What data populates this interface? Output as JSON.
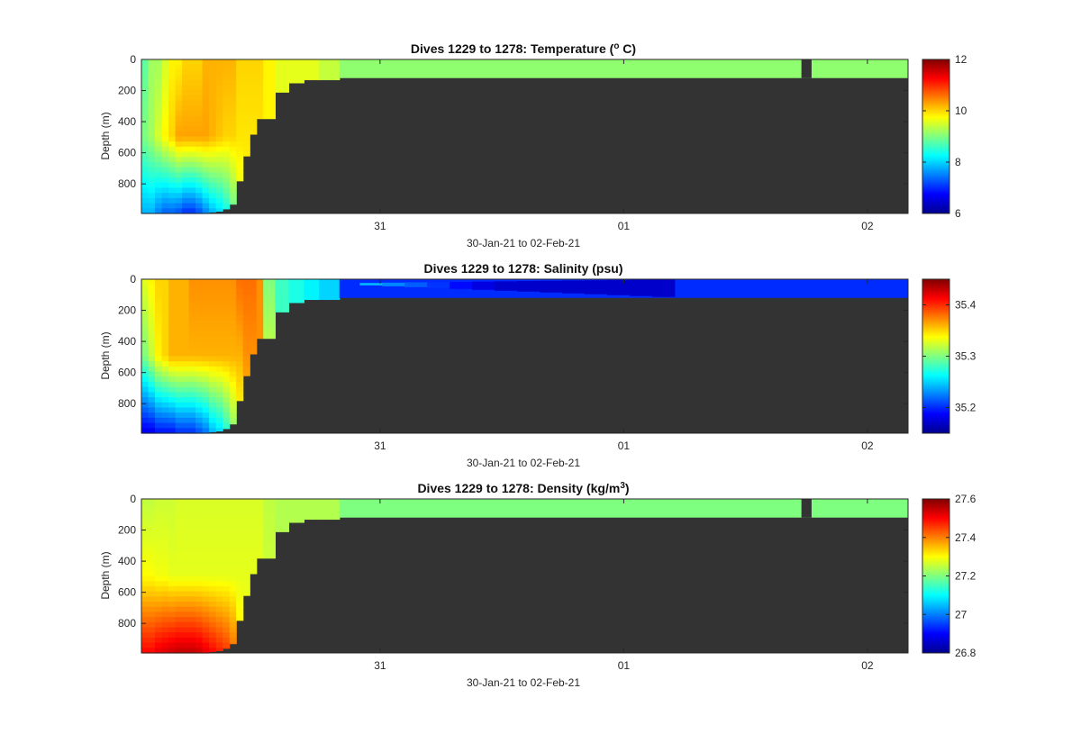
{
  "chart_data": [
    {
      "type": "heatmap",
      "variable": "temperature",
      "title_main": "Dives 1229 to 1278: Temperature (",
      "title_sup": "o",
      "title_end": " C)",
      "xlabel": "30-Jan-21 to 02-Feb-21",
      "ylabel": "Depth (m)",
      "xlim": [
        "2021-01-30T00:30",
        "2021-02-02T04:00"
      ],
      "ylim": [
        990,
        0
      ],
      "x_ticks": [
        {
          "date": "2021-01-31",
          "label": "31"
        },
        {
          "date": "2021-02-01",
          "label": "01"
        },
        {
          "date": "2021-02-02",
          "label": "02"
        }
      ],
      "y_ticks": [
        {
          "value": 0,
          "label": "0"
        },
        {
          "value": 200,
          "label": "200"
        },
        {
          "value": 400,
          "label": "400"
        },
        {
          "value": 600,
          "label": "600"
        },
        {
          "value": 800,
          "label": "800"
        }
      ],
      "colorbar": {
        "min": 6,
        "max": 12,
        "ticks": [
          {
            "value": 6,
            "label": "6"
          },
          {
            "value": 8,
            "label": "8"
          },
          {
            "value": 10,
            "label": "10"
          },
          {
            "value": 12,
            "label": "12"
          }
        ]
      },
      "no_data_color": "#333333",
      "profiles": {
        "dive_end_times": [
          "2021-01-30T01:10",
          "2021-01-30T01:50",
          "2021-01-30T02:30",
          "2021-01-30T03:10",
          "2021-01-30T03:50",
          "2021-01-30T04:30",
          "2021-01-30T05:10",
          "2021-01-30T05:50",
          "2021-01-30T06:30",
          "2021-01-30T07:10",
          "2021-01-30T07:50",
          "2021-01-30T08:30",
          "2021-01-30T09:10",
          "2021-01-30T09:50",
          "2021-01-30T10:30",
          "2021-01-30T11:10",
          "2021-01-30T11:50",
          "2021-01-30T12:30",
          "2021-01-30T13:40",
          "2021-01-30T15:00",
          "2021-01-30T16:30",
          "2021-01-30T18:00",
          "2021-01-30T20:00"
        ],
        "max_depth": [
          990,
          990,
          990,
          990,
          990,
          990,
          990,
          990,
          990,
          990,
          980,
          975,
          960,
          930,
          780,
          620,
          480,
          380,
          380,
          210,
          150,
          130,
          130
        ],
        "surface": [
          8.8,
          9.2,
          9.2,
          9.5,
          9.8,
          9.8,
          10.0,
          10.0,
          10.0,
          10.2,
          10.2,
          10.2,
          10.2,
          10.2,
          10.0,
          10.0,
          10.0,
          10.0,
          9.8,
          9.6,
          9.6,
          9.6,
          9.4
        ],
        "middle": [
          9.0,
          9.2,
          9.5,
          9.8,
          10.0,
          10.3,
          10.3,
          10.3,
          10.3,
          10.3,
          10.2,
          10.1,
          10.0,
          10.0,
          9.9,
          9.9,
          9.9,
          9.9,
          9.8,
          9.6,
          9.6,
          9.6,
          9.4
        ],
        "bottom": [
          7.8,
          7.8,
          7.5,
          7.3,
          7.3,
          7.2,
          7.0,
          7.0,
          7.2,
          7.5,
          7.8,
          8.0,
          8.3,
          8.8,
          9.5,
          9.7,
          9.8,
          9.9,
          9.8,
          9.6,
          9.6,
          9.6,
          9.4
        ]
      },
      "shelf": {
        "end": "2021-02-02T04:00",
        "depth": 120,
        "value": 9.1,
        "gap": [
          "2021-02-01T17:30",
          "2021-02-01T18:30"
        ]
      }
    },
    {
      "type": "heatmap",
      "variable": "salinity",
      "title_main": "Dives 1229 to 1278: Salinity (psu)",
      "title_sup": "",
      "title_end": "",
      "xlabel": "30-Jan-21 to 02-Feb-21",
      "ylabel": "Depth (m)",
      "xlim": [
        "2021-01-30T00:30",
        "2021-02-02T04:00"
      ],
      "ylim": [
        990,
        0
      ],
      "x_ticks": [
        {
          "date": "2021-01-31",
          "label": "31"
        },
        {
          "date": "2021-02-01",
          "label": "01"
        },
        {
          "date": "2021-02-02",
          "label": "02"
        }
      ],
      "y_ticks": [
        {
          "value": 0,
          "label": "0"
        },
        {
          "value": 200,
          "label": "200"
        },
        {
          "value": 400,
          "label": "400"
        },
        {
          "value": 600,
          "label": "600"
        },
        {
          "value": 800,
          "label": "800"
        }
      ],
      "colorbar": {
        "min": 35.15,
        "max": 35.45,
        "ticks": [
          {
            "value": 35.2,
            "label": "35.2"
          },
          {
            "value": 35.3,
            "label": "35.3"
          },
          {
            "value": 35.4,
            "label": "35.4"
          }
        ]
      },
      "no_data_color": "#333333",
      "profiles": {
        "dive_end_times": [
          "2021-01-30T01:10",
          "2021-01-30T01:50",
          "2021-01-30T02:30",
          "2021-01-30T03:10",
          "2021-01-30T03:50",
          "2021-01-30T04:30",
          "2021-01-30T05:10",
          "2021-01-30T05:50",
          "2021-01-30T06:30",
          "2021-01-30T07:10",
          "2021-01-30T07:50",
          "2021-01-30T08:30",
          "2021-01-30T09:10",
          "2021-01-30T09:50",
          "2021-01-30T10:30",
          "2021-01-30T11:10",
          "2021-01-30T11:50",
          "2021-01-30T12:30",
          "2021-01-30T13:40",
          "2021-01-30T15:00",
          "2021-01-30T16:30",
          "2021-01-30T18:00",
          "2021-01-30T20:00"
        ],
        "max_depth": [
          990,
          990,
          990,
          990,
          990,
          990,
          990,
          990,
          990,
          990,
          980,
          975,
          960,
          930,
          780,
          620,
          480,
          380,
          380,
          210,
          150,
          130,
          130
        ],
        "surface": [
          35.33,
          35.34,
          35.35,
          35.35,
          35.36,
          35.36,
          35.36,
          35.37,
          35.37,
          35.37,
          35.37,
          35.37,
          35.37,
          35.37,
          35.38,
          35.38,
          35.38,
          35.37,
          35.3,
          35.28,
          35.27,
          35.26,
          35.25
        ],
        "middle": [
          35.3,
          35.32,
          35.34,
          35.35,
          35.36,
          35.36,
          35.36,
          35.36,
          35.36,
          35.36,
          35.36,
          35.36,
          35.36,
          35.36,
          35.36,
          35.37,
          35.37,
          35.37,
          35.32,
          35.28,
          35.27,
          35.26,
          35.25
        ],
        "bottom": [
          35.18,
          35.18,
          35.19,
          35.19,
          35.19,
          35.2,
          35.2,
          35.2,
          35.21,
          35.22,
          35.24,
          35.25,
          35.27,
          35.3,
          35.33,
          35.35,
          35.36,
          35.36,
          35.33,
          35.28,
          35.27,
          35.26,
          35.25
        ]
      },
      "shelf": {
        "end": "2021-02-02T04:00",
        "depth": 120,
        "value": 35.2,
        "tongue": {
          "start": "2021-01-30T22:00",
          "end": "2021-02-01T05:00",
          "value_start": 35.24,
          "value_core": 35.17,
          "depth_start": 40,
          "depth_end": 120
        }
      }
    },
    {
      "type": "heatmap",
      "variable": "density",
      "title_main": "Dives 1229 to 1278: Density (kg/m",
      "title_sup": "3",
      "title_end": ")",
      "xlabel": "30-Jan-21 to 02-Feb-21",
      "ylabel": "Depth (m)",
      "xlim": [
        "2021-01-30T00:30",
        "2021-02-02T04:00"
      ],
      "ylim": [
        990,
        0
      ],
      "x_ticks": [
        {
          "date": "2021-01-31",
          "label": "31"
        },
        {
          "date": "2021-02-01",
          "label": "01"
        },
        {
          "date": "2021-02-02",
          "label": "02"
        }
      ],
      "y_ticks": [
        {
          "value": 0,
          "label": "0"
        },
        {
          "value": 200,
          "label": "200"
        },
        {
          "value": 400,
          "label": "400"
        },
        {
          "value": 600,
          "label": "600"
        },
        {
          "value": 800,
          "label": "800"
        }
      ],
      "colorbar": {
        "min": 26.8,
        "max": 27.6,
        "ticks": [
          {
            "value": 26.8,
            "label": "26.8"
          },
          {
            "value": 27.0,
            "label": "27"
          },
          {
            "value": 27.2,
            "label": "27.2"
          },
          {
            "value": 27.4,
            "label": "27.4"
          },
          {
            "value": 27.6,
            "label": "27.6"
          }
        ]
      },
      "no_data_color": "#333333",
      "profiles": {
        "dive_end_times": [
          "2021-01-30T01:10",
          "2021-01-30T01:50",
          "2021-01-30T02:30",
          "2021-01-30T03:10",
          "2021-01-30T03:50",
          "2021-01-30T04:30",
          "2021-01-30T05:10",
          "2021-01-30T05:50",
          "2021-01-30T06:30",
          "2021-01-30T07:10",
          "2021-01-30T07:50",
          "2021-01-30T08:30",
          "2021-01-30T09:10",
          "2021-01-30T09:50",
          "2021-01-30T10:30",
          "2021-01-30T11:10",
          "2021-01-30T11:50",
          "2021-01-30T12:30",
          "2021-01-30T13:40",
          "2021-01-30T15:00",
          "2021-01-30T16:30",
          "2021-01-30T18:00",
          "2021-01-30T20:00"
        ],
        "max_depth": [
          990,
          990,
          990,
          990,
          990,
          990,
          990,
          990,
          990,
          990,
          980,
          975,
          960,
          930,
          780,
          620,
          480,
          380,
          380,
          210,
          150,
          130,
          130
        ],
        "surface": [
          27.25,
          27.25,
          27.26,
          27.26,
          27.26,
          27.27,
          27.27,
          27.27,
          27.27,
          27.27,
          27.27,
          27.27,
          27.27,
          27.27,
          27.27,
          27.27,
          27.27,
          27.27,
          27.25,
          27.24,
          27.24,
          27.24,
          27.24
        ],
        "middle": [
          27.3,
          27.3,
          27.29,
          27.29,
          27.28,
          27.28,
          27.28,
          27.28,
          27.28,
          27.28,
          27.28,
          27.28,
          27.28,
          27.28,
          27.28,
          27.28,
          27.28,
          27.28,
          27.26,
          27.24,
          27.24,
          27.24,
          27.24
        ],
        "bottom": [
          27.5,
          27.5,
          27.52,
          27.53,
          27.54,
          27.55,
          27.55,
          27.55,
          27.54,
          27.52,
          27.5,
          27.48,
          27.46,
          27.42,
          27.32,
          27.3,
          27.29,
          27.28,
          27.26,
          27.24,
          27.24,
          27.24,
          27.24
        ]
      },
      "shelf": {
        "end": "2021-02-02T04:00",
        "depth": 120,
        "value": 27.2,
        "gap": [
          "2021-02-01T17:30",
          "2021-02-01T18:30"
        ]
      }
    }
  ]
}
